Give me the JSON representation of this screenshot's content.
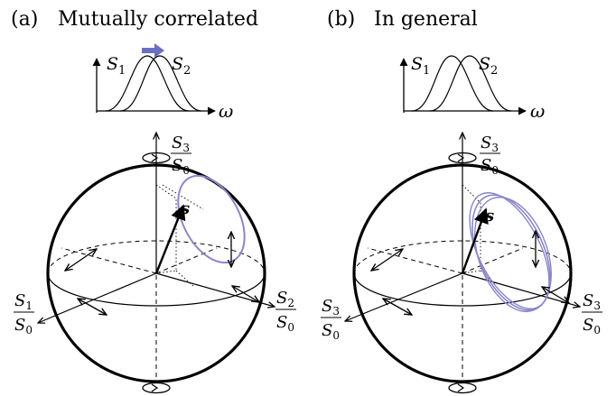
{
  "panels": [
    {
      "label": "(a)",
      "title": "Mutually correlated",
      "spectra": {
        "s1": "S",
        "s1_sub": "1",
        "s2": "S",
        "s2_sub": "2",
        "axis": "ω"
      },
      "sphere": {
        "vector": "s",
        "left_axis": {
          "num": "S",
          "num_sub": "1",
          "den": "S",
          "den_sub": "0"
        },
        "right_axis": {
          "num": "S",
          "num_sub": "2",
          "den": "S",
          "den_sub": "0"
        },
        "top_axis": {
          "num": "S",
          "num_sub": "3",
          "den": "S",
          "den_sub": "0"
        }
      }
    },
    {
      "label": "(b)",
      "title": "In general",
      "spectra": {
        "s1": "S",
        "s1_sub": "1",
        "s2": "S",
        "s2_sub": "2",
        "axis": "ω"
      },
      "sphere": {
        "vector": "s",
        "left_axis": {
          "num": "S",
          "num_sub": "3",
          "den": "S",
          "den_sub": "0"
        },
        "right_axis": {
          "num": "S",
          "num_sub": "3",
          "den": "S",
          "den_sub": "0"
        },
        "top_axis": {
          "num": "S",
          "num_sub": "3",
          "den": "S",
          "den_sub": "0"
        }
      }
    }
  ],
  "colors": {
    "trajectory": "#8a87c8",
    "arrow": "#6b6fc0",
    "ink": "#000000"
  }
}
